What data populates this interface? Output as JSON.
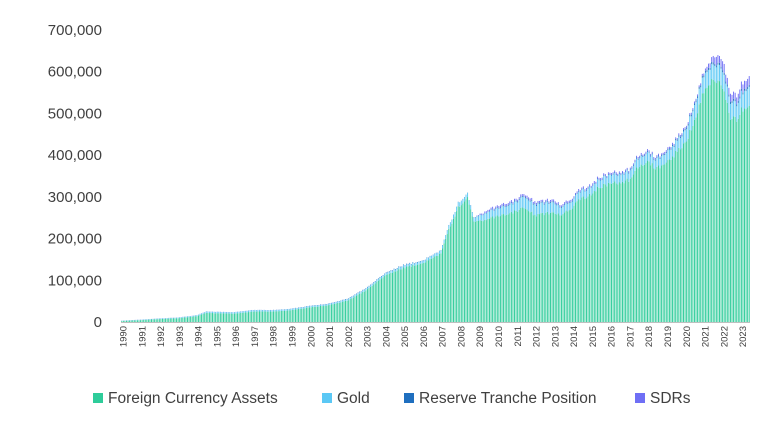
{
  "chart_data": {
    "type": "bar",
    "stacked": true,
    "frequency": "monthly",
    "title": "",
    "xlabel": "",
    "ylabel": "",
    "ylim": [
      0,
      700000
    ],
    "yticks": [
      0,
      100000,
      200000,
      300000,
      400000,
      500000,
      600000,
      700000
    ],
    "ytick_labels": [
      "0",
      "100,000",
      "200,000",
      "300,000",
      "400,000",
      "500,000",
      "600,000",
      "700,000"
    ],
    "x_tick_labels": [
      "1990",
      "1991",
      "1992",
      "1993",
      "1994",
      "1995",
      "1996",
      "1997",
      "1998",
      "1999",
      "2000",
      "2001",
      "2002",
      "2003",
      "2004",
      "2005",
      "2006",
      "2007",
      "2008",
      "2009",
      "2010",
      "2011",
      "2012",
      "2013",
      "2014",
      "2015",
      "2016",
      "2017",
      "2018",
      "2019",
      "2020",
      "2021",
      "2022",
      "2023"
    ],
    "grid": false,
    "legend_position": "bottom",
    "anchor_dates": [
      "1990-01",
      "1991-01",
      "1992-01",
      "1993-01",
      "1994-01",
      "1994-07",
      "1995-01",
      "1996-01",
      "1997-01",
      "1998-01",
      "1999-01",
      "2000-01",
      "2001-01",
      "2002-01",
      "2003-01",
      "2004-01",
      "2005-01",
      "2006-01",
      "2007-01",
      "2007-06",
      "2007-12",
      "2008-06",
      "2008-10",
      "2009-06",
      "2010-01",
      "2011-01",
      "2011-06",
      "2012-01",
      "2012-06",
      "2013-01",
      "2013-06",
      "2014-01",
      "2014-06",
      "2015-01",
      "2015-06",
      "2016-01",
      "2017-01",
      "2017-06",
      "2018-01",
      "2018-06",
      "2019-01",
      "2019-06",
      "2020-01",
      "2020-06",
      "2021-01",
      "2021-06",
      "2021-10",
      "2022-01",
      "2022-06",
      "2022-10",
      "2023-01",
      "2023-06"
    ],
    "series": [
      {
        "name": "Foreign Currency Assets",
        "color": "#2ecc9a",
        "values": [
          2500,
          4500,
          7000,
          9000,
          14000,
          22000,
          21000,
          20000,
          25000,
          25000,
          28000,
          35000,
          40000,
          51000,
          75000,
          110000,
          130000,
          140000,
          165000,
          220000,
          275000,
          300000,
          240000,
          245000,
          255000,
          265000,
          275000,
          255000,
          258000,
          265000,
          255000,
          275000,
          295000,
          305000,
          325000,
          330000,
          340000,
          370000,
          385000,
          370000,
          380000,
          400000,
          430000,
          470000,
          555000,
          575000,
          575000,
          560000,
          490000,
          485000,
          510000,
          520000
        ]
      },
      {
        "name": "Gold",
        "color": "#5bc8f5",
        "values": [
          500,
          800,
          1200,
          1500,
          2000,
          3000,
          3000,
          3000,
          3500,
          3000,
          3000,
          3000,
          3000,
          3500,
          4000,
          4500,
          5000,
          5500,
          7000,
          9000,
          10000,
          10000,
          9000,
          16000,
          18000,
          22000,
          26000,
          25000,
          25000,
          24000,
          18000,
          17000,
          18000,
          18000,
          18000,
          20000,
          20000,
          21000,
          21000,
          21000,
          23000,
          25000,
          29000,
          35000,
          38000,
          36000,
          38000,
          40000,
          38000,
          37000,
          40000,
          45000
        ]
      },
      {
        "name": "Reserve Tranche Position",
        "color": "#1f6fbf",
        "values": [
          300,
          300,
          300,
          300,
          300,
          400,
          400,
          400,
          400,
          500,
          600,
          700,
          800,
          1000,
          1200,
          1300,
          1400,
          1000,
          700,
          500,
          500,
          500,
          900,
          1200,
          1800,
          2200,
          2500,
          2500,
          2400,
          2300,
          2000,
          1900,
          1800,
          1600,
          1500,
          2000,
          2300,
          2300,
          2200,
          2100,
          2800,
          3400,
          3700,
          4200,
          4900,
          5000,
          5000,
          5100,
          5000,
          5000,
          5000,
          5000
        ]
      },
      {
        "name": "SDRs",
        "color": "#6f6ff5",
        "values": [
          100,
          100,
          100,
          100,
          100,
          100,
          100,
          100,
          100,
          100,
          100,
          100,
          100,
          100,
          100,
          100,
          100,
          100,
          100,
          100,
          100,
          100,
          100,
          4000,
          5000,
          4500,
          4500,
          4500,
          4400,
          4300,
          4200,
          4100,
          4100,
          4100,
          4000,
          3900,
          3900,
          4000,
          4000,
          4000,
          4000,
          4000,
          4100,
          4100,
          4100,
          12000,
          19000,
          19000,
          18000,
          17500,
          18000,
          18200
        ]
      }
    ]
  }
}
